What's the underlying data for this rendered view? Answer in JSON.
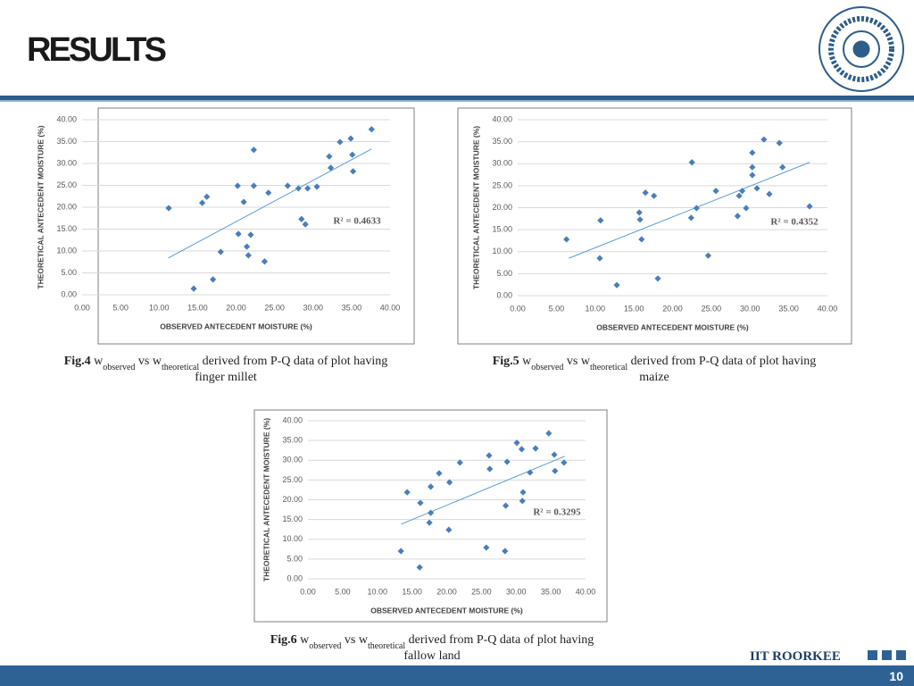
{
  "slide": {
    "title": "RESULTS",
    "footer": "IIT ROORKEE",
    "page_number": 10
  },
  "chart_data": [
    {
      "type": "scatter",
      "color": "#4a7ebb",
      "trend_color": "#5b9bd5",
      "grid": true,
      "x_label": "OBSERVED ANTECEDENT MOISTURE (%)",
      "y_label": "THEORETICAL ANTECEDENT MOISTURE (%)",
      "annotation": "R² = 0.4633",
      "caption": [
        "Fig.4",
        " w",
        "observed",
        " vs w",
        "theoretical",
        " derived from P-Q data of plot having",
        "finger millet"
      ],
      "xlim": [
        0,
        40
      ],
      "ylim": [
        0,
        40
      ],
      "xticks": [
        {
          "value": 0,
          "label": "0.00"
        },
        {
          "value": 5,
          "label": "5.00"
        },
        {
          "value": 10,
          "label": "10.00"
        },
        {
          "value": 15,
          "label": "15.00"
        },
        {
          "value": 20,
          "label": "20.00"
        },
        {
          "value": 25,
          "label": "25.00"
        },
        {
          "value": 30,
          "label": "30.00"
        },
        {
          "value": 35,
          "label": "35.00"
        },
        {
          "value": 40,
          "label": "40.00"
        }
      ],
      "yticks": [
        {
          "value": 0,
          "label": "0.00"
        },
        {
          "value": 5,
          "label": "5.00"
        },
        {
          "value": 10,
          "label": "10.00"
        },
        {
          "value": 15,
          "label": "15.00"
        },
        {
          "value": 20,
          "label": "20.00"
        },
        {
          "value": 25,
          "label": "25.00"
        },
        {
          "value": 30,
          "label": "30.00"
        },
        {
          "value": 35,
          "label": "35.00"
        },
        {
          "value": 40,
          "label": "40.00"
        }
      ],
      "x": [
        11.25,
        14.5,
        15.6,
        16.2,
        17.0,
        18.0,
        20.2,
        20.3,
        21.0,
        21.4,
        21.6,
        21.9,
        22.3,
        22.3,
        23.7,
        24.2,
        26.7,
        28.1,
        28.5,
        29.0,
        29.3,
        30.5,
        32.1,
        32.3,
        33.5,
        34.9,
        35.1,
        35.2,
        37.6
      ],
      "values": [
        19.8,
        1.4,
        21.0,
        22.4,
        3.5,
        9.8,
        24.9,
        13.9,
        21.2,
        11.0,
        9.0,
        13.7,
        33.1,
        24.9,
        7.6,
        23.3,
        24.9,
        24.3,
        17.3,
        16.1,
        24.3,
        24.7,
        31.6,
        29.0,
        34.9,
        35.7,
        32.0,
        28.2,
        37.8
      ],
      "trendline": {
        "x": [
          11.2,
          37.6
        ],
        "y": [
          8.4,
          33.3
        ]
      }
    },
    {
      "type": "scatter",
      "color": "#4a7ebb",
      "trend_color": "#5b9bd5",
      "grid": true,
      "x_label": "OBSERVED ANTECEDENT MOISTURE (%)",
      "y_label": "THEORETICAL ANTECEDENT MOISTURE (%)",
      "annotation": "R² = 0.4352",
      "caption": [
        "Fig.5",
        " w",
        "observed",
        " vs w",
        "theoretical",
        " derived from P-Q data of plot having",
        "maize"
      ],
      "xlim": [
        0,
        40
      ],
      "ylim": [
        0,
        40
      ],
      "xticks": [
        {
          "value": 0,
          "label": "0.00"
        },
        {
          "value": 5,
          "label": "5.00"
        },
        {
          "value": 10,
          "label": "10.00"
        },
        {
          "value": 15,
          "label": "15.00"
        },
        {
          "value": 20,
          "label": "20.00"
        },
        {
          "value": 25,
          "label": "25.00"
        },
        {
          "value": 30,
          "label": "30.00"
        },
        {
          "value": 35,
          "label": "35.00"
        },
        {
          "value": 40,
          "label": "40.00"
        }
      ],
      "yticks": [
        {
          "value": 0,
          "label": "0.00"
        },
        {
          "value": 5,
          "label": "5.00"
        },
        {
          "value": 10,
          "label": "10.00"
        },
        {
          "value": 15,
          "label": "15.00"
        },
        {
          "value": 20,
          "label": "20.00"
        },
        {
          "value": 25,
          "label": "25.00"
        },
        {
          "value": 30,
          "label": "30.00"
        },
        {
          "value": 35,
          "label": "35.00"
        },
        {
          "value": 40,
          "label": "40.00"
        }
      ],
      "x": [
        6.3,
        10.7,
        10.6,
        12.8,
        15.7,
        15.8,
        16.0,
        16.5,
        17.6,
        18.1,
        22.4,
        22.5,
        23.1,
        24.6,
        25.6,
        28.4,
        28.6,
        29.0,
        29.5,
        30.3,
        30.3,
        30.3,
        30.9,
        31.8,
        32.5,
        33.8,
        34.2,
        37.7
      ],
      "values": [
        12.8,
        17.1,
        8.5,
        2.4,
        18.9,
        17.3,
        12.8,
        23.4,
        22.7,
        3.9,
        17.7,
        30.3,
        19.9,
        9.1,
        23.8,
        18.1,
        22.7,
        23.8,
        19.9,
        32.5,
        29.2,
        27.4,
        24.4,
        35.5,
        23.1,
        34.7,
        29.2,
        20.3
      ],
      "trendline": {
        "x": [
          6.6,
          37.7
        ],
        "y": [
          8.5,
          30.3
        ]
      }
    },
    {
      "type": "scatter",
      "color": "#4a7ebb",
      "trend_color": "#5b9bd5",
      "grid": true,
      "x_label": "OBSERVED ANTECEDENT MOISTURE (%)",
      "y_label": "THEORETICAL ANTECEDENT MOISTURE (%)",
      "annotation": "R² = 0.3295",
      "caption": [
        "Fig.6",
        " w",
        "observed",
        " vs w",
        "theoretical",
        " derived from P-Q data of plot having",
        "fallow land"
      ],
      "xlim": [
        0,
        40
      ],
      "ylim": [
        0,
        40
      ],
      "xticks": [
        {
          "value": 0,
          "label": "0.00"
        },
        {
          "value": 5,
          "label": "5.00"
        },
        {
          "value": 10,
          "label": "10.00"
        },
        {
          "value": 15,
          "label": "15.00"
        },
        {
          "value": 20,
          "label": "20.00"
        },
        {
          "value": 25,
          "label": "25.00"
        },
        {
          "value": 30,
          "label": "30.00"
        },
        {
          "value": 35,
          "label": "35.00"
        },
        {
          "value": 40,
          "label": "40.00"
        }
      ],
      "yticks": [
        {
          "value": 0,
          "label": "0.00"
        },
        {
          "value": 5,
          "label": "5.00"
        },
        {
          "value": 10,
          "label": "10.00"
        },
        {
          "value": 15,
          "label": "15.00"
        },
        {
          "value": 20,
          "label": "20.00"
        },
        {
          "value": 25,
          "label": "25.00"
        },
        {
          "value": 30,
          "label": "30.00"
        },
        {
          "value": 35,
          "label": "35.00"
        },
        {
          "value": 40,
          "label": "40.00"
        }
      ],
      "x": [
        13.4,
        14.3,
        16.1,
        16.2,
        17.5,
        17.7,
        17.7,
        18.9,
        20.3,
        20.4,
        21.9,
        25.7,
        26.1,
        26.2,
        28.4,
        28.5,
        28.7,
        30.1,
        30.8,
        31.0,
        30.9,
        32.0,
        32.8,
        34.7,
        35.5,
        35.6,
        36.9
      ],
      "values": [
        7.0,
        21.9,
        2.9,
        19.2,
        14.2,
        23.3,
        16.7,
        26.7,
        12.4,
        24.4,
        29.4,
        7.9,
        31.2,
        27.8,
        7.0,
        18.5,
        29.6,
        34.4,
        32.8,
        21.9,
        19.7,
        26.9,
        33.0,
        36.8,
        31.4,
        27.3,
        29.4
      ],
      "trendline": {
        "x": [
          13.4,
          37.0
        ],
        "y": [
          13.8,
          31.0
        ]
      }
    }
  ]
}
